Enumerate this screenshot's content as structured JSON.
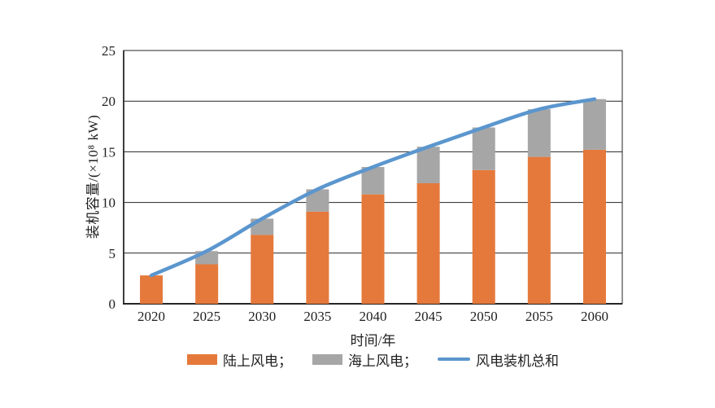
{
  "chart_data": {
    "type": "bar",
    "stacked": true,
    "title": "",
    "categories": [
      "2020",
      "2025",
      "2030",
      "2035",
      "2040",
      "2045",
      "2050",
      "2055",
      "2060"
    ],
    "series": [
      {
        "name": "陆上风电",
        "kind": "bar",
        "color": "#E5793B",
        "values": [
          2.8,
          3.9,
          6.8,
          9.1,
          10.8,
          11.9,
          13.2,
          14.5,
          15.2
        ]
      },
      {
        "name": "海上风电",
        "kind": "bar",
        "color": "#A6A6A6",
        "values": [
          0,
          1.3,
          1.6,
          2.2,
          2.7,
          3.6,
          4.2,
          4.7,
          5.0
        ]
      },
      {
        "name": "风电装机总和",
        "kind": "line",
        "color": "#5B96CE",
        "values": [
          2.8,
          5.2,
          8.4,
          11.3,
          13.5,
          15.5,
          17.4,
          19.2,
          20.2
        ]
      }
    ],
    "xlabel": "时间/年",
    "ylabel": "装机容量/(×10⁸ kW)",
    "ylim": [
      0,
      25
    ],
    "yticks": [
      0,
      5,
      10,
      15,
      20,
      25
    ],
    "grid": true,
    "legend_position": "bottom",
    "axis_color": "#262626",
    "text_color": "#1f1f1f"
  },
  "legend": {
    "items": [
      {
        "label": "陆上风电；",
        "swatch": "bar",
        "series": 0
      },
      {
        "label": "海上风电；",
        "swatch": "bar",
        "series": 1
      },
      {
        "label": "风电装机总和",
        "swatch": "line",
        "series": 2
      }
    ]
  }
}
